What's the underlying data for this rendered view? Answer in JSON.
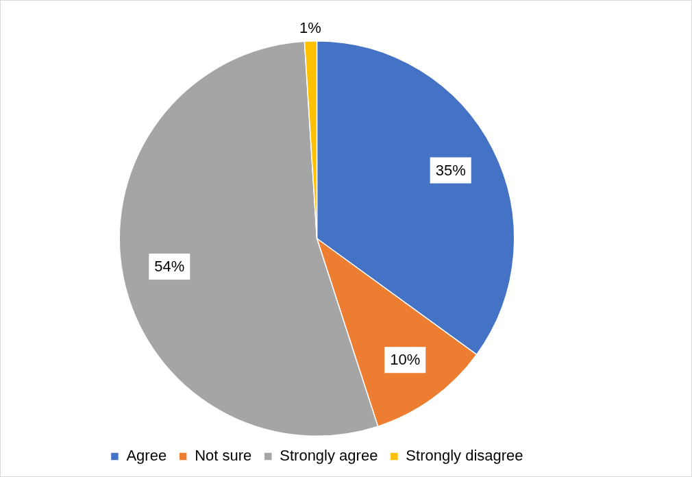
{
  "chart_data": {
    "type": "pie",
    "categories": [
      "Agree",
      "Not sure",
      "Strongly agree",
      "Strongly disagree"
    ],
    "values": [
      35,
      10,
      54,
      1
    ],
    "value_labels": [
      "35%",
      "10%",
      "54%",
      "1%"
    ],
    "colors": [
      "#4472c4",
      "#ed7d31",
      "#a5a5a5",
      "#ffc000"
    ],
    "data_labels": true,
    "legend": "bottom"
  }
}
